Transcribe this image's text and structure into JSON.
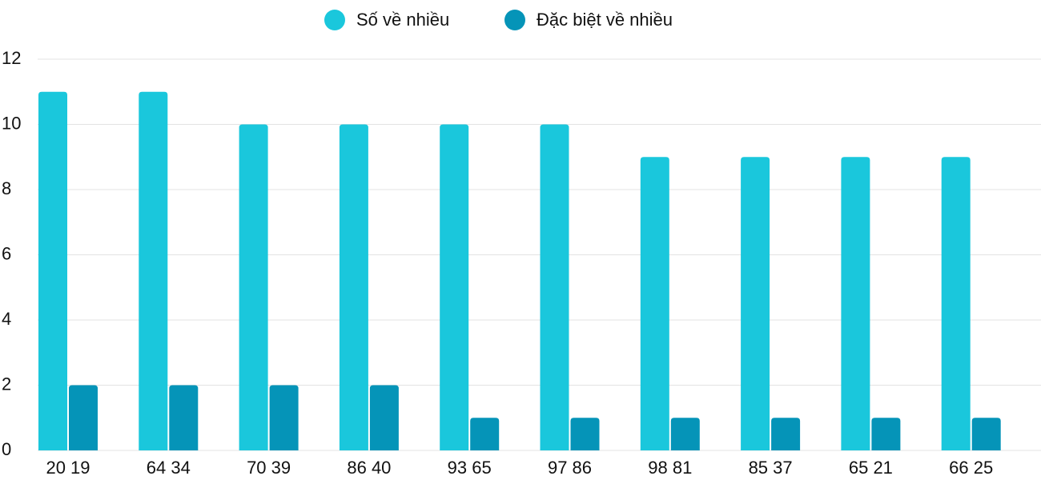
{
  "chart_data": {
    "type": "bar",
    "categories": [
      "20 19",
      "64 34",
      "70 39",
      "86 40",
      "93 65",
      "97 86",
      "98 81",
      "85 37",
      "65 21",
      "66 25"
    ],
    "series": [
      {
        "name": "Số về nhiều",
        "color": "#1ac7dc",
        "values": [
          11,
          11,
          10,
          10,
          10,
          10,
          9,
          9,
          9,
          9
        ]
      },
      {
        "name": "Đặc biệt về nhiều",
        "color": "#0594b8",
        "values": [
          2,
          2,
          2,
          2,
          1,
          1,
          1,
          1,
          1,
          1
        ]
      }
    ],
    "ylim": [
      0,
      12
    ],
    "yticks": [
      0,
      2,
      4,
      6,
      8,
      10,
      12
    ],
    "grid": true,
    "legend": "top"
  }
}
